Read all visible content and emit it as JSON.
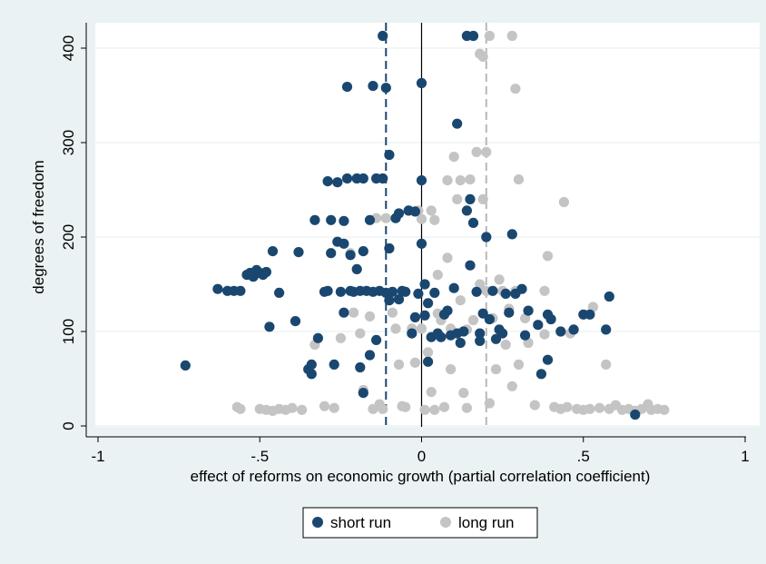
{
  "chart_data": {
    "type": "scatter",
    "title": "",
    "xlabel": "effect of reforms on economic growth (partial correlation coefficient)",
    "ylabel": "degrees of freedom",
    "xlim": [
      -1,
      1
    ],
    "ylim": [
      0,
      420
    ],
    "x_ticks": [
      -1,
      -0.5,
      0,
      0.5,
      1
    ],
    "x_tick_labels": [
      "-1",
      "-.5",
      "0",
      ".5",
      "1"
    ],
    "y_ticks": [
      0,
      100,
      200,
      300,
      400
    ],
    "y_tick_labels": [
      "0",
      "100",
      "200",
      "300",
      "400"
    ],
    "grid": "horizontal",
    "legend_position": "bottom",
    "reference_lines": [
      {
        "x": 0,
        "style": "solid",
        "color": "#000000"
      },
      {
        "x": -0.11,
        "style": "dashed",
        "color": "#1a476f"
      },
      {
        "x": 0.2,
        "style": "dashed",
        "color": "#b8b8b8"
      }
    ],
    "series": [
      {
        "name": "short run",
        "color": "#1a476f",
        "points": [
          [
            -0.73,
            64
          ],
          [
            -0.63,
            145
          ],
          [
            -0.6,
            143
          ],
          [
            -0.58,
            143
          ],
          [
            -0.56,
            143
          ],
          [
            -0.54,
            160
          ],
          [
            -0.53,
            162
          ],
          [
            -0.52,
            158
          ],
          [
            -0.51,
            165
          ],
          [
            -0.5,
            162
          ],
          [
            -0.49,
            160
          ],
          [
            -0.48,
            163
          ],
          [
            -0.47,
            105
          ],
          [
            -0.46,
            185
          ],
          [
            -0.44,
            141
          ],
          [
            -0.39,
            111
          ],
          [
            -0.38,
            184
          ],
          [
            -0.35,
            60
          ],
          [
            -0.34,
            55
          ],
          [
            -0.34,
            65
          ],
          [
            -0.33,
            218
          ],
          [
            -0.32,
            93
          ],
          [
            -0.3,
            142
          ],
          [
            -0.29,
            259
          ],
          [
            -0.29,
            143
          ],
          [
            -0.28,
            183
          ],
          [
            -0.28,
            218
          ],
          [
            -0.27,
            65
          ],
          [
            -0.26,
            195
          ],
          [
            -0.26,
            258
          ],
          [
            -0.25,
            142
          ],
          [
            -0.24,
            217
          ],
          [
            -0.24,
            193
          ],
          [
            -0.24,
            120
          ],
          [
            -0.23,
            262
          ],
          [
            -0.23,
            359
          ],
          [
            -0.22,
            143
          ],
          [
            -0.22,
            181
          ],
          [
            -0.21,
            142
          ],
          [
            -0.2,
            166
          ],
          [
            -0.2,
            262
          ],
          [
            -0.19,
            62
          ],
          [
            -0.19,
            143
          ],
          [
            -0.18,
            35
          ],
          [
            -0.18,
            185
          ],
          [
            -0.18,
            262
          ],
          [
            -0.17,
            143
          ],
          [
            -0.16,
            75
          ],
          [
            -0.16,
            218
          ],
          [
            -0.15,
            360
          ],
          [
            -0.15,
            142
          ],
          [
            -0.14,
            262
          ],
          [
            -0.14,
            91
          ],
          [
            -0.13,
            143
          ],
          [
            -0.12,
            262
          ],
          [
            -0.12,
            413
          ],
          [
            -0.11,
            358
          ],
          [
            -0.11,
            141
          ],
          [
            -0.1,
            287
          ],
          [
            -0.1,
            133
          ],
          [
            -0.1,
            188
          ],
          [
            -0.09,
            142
          ],
          [
            -0.08,
            220
          ],
          [
            -0.07,
            134
          ],
          [
            -0.07,
            225
          ],
          [
            -0.06,
            143
          ],
          [
            -0.05,
            142
          ],
          [
            -0.04,
            228
          ],
          [
            -0.03,
            98
          ],
          [
            -0.02,
            115
          ],
          [
            -0.02,
            227
          ],
          [
            -0.01,
            140
          ],
          [
            0,
            363
          ],
          [
            0,
            260
          ],
          [
            0,
            193
          ],
          [
            0.01,
            150
          ],
          [
            0.01,
            117
          ],
          [
            0.02,
            130
          ],
          [
            0.02,
            68
          ],
          [
            0.03,
            94
          ],
          [
            0.04,
            141
          ],
          [
            0.05,
            98
          ],
          [
            0.06,
            94
          ],
          [
            0.07,
            118
          ],
          [
            0.08,
            122
          ],
          [
            0.09,
            96
          ],
          [
            0.1,
            146
          ],
          [
            0.11,
            320
          ],
          [
            0.11,
            98
          ],
          [
            0.12,
            88
          ],
          [
            0.13,
            100
          ],
          [
            0.14,
            413
          ],
          [
            0.14,
            228
          ],
          [
            0.15,
            240
          ],
          [
            0.15,
            170
          ],
          [
            0.16,
            413
          ],
          [
            0.16,
            215
          ],
          [
            0.17,
            142
          ],
          [
            0.18,
            90
          ],
          [
            0.18,
            98
          ],
          [
            0.19,
            119
          ],
          [
            0.2,
            200
          ],
          [
            0.21,
            113
          ],
          [
            0.22,
            143
          ],
          [
            0.23,
            92
          ],
          [
            0.24,
            102
          ],
          [
            0.25,
            98
          ],
          [
            0.26,
            140
          ],
          [
            0.27,
            120
          ],
          [
            0.28,
            203
          ],
          [
            0.29,
            140
          ],
          [
            0.31,
            145
          ],
          [
            0.32,
            96
          ],
          [
            0.33,
            122
          ],
          [
            0.36,
            107
          ],
          [
            0.37,
            55
          ],
          [
            0.39,
            70
          ],
          [
            0.39,
            118
          ],
          [
            0.4,
            113
          ],
          [
            0.43,
            100
          ],
          [
            0.47,
            102
          ],
          [
            0.5,
            118
          ],
          [
            0.52,
            118
          ],
          [
            0.57,
            102
          ],
          [
            0.58,
            137
          ],
          [
            0.66,
            12
          ]
        ]
      },
      {
        "name": "long run",
        "color": "#c4c4c4",
        "points": [
          [
            -0.57,
            20
          ],
          [
            -0.56,
            18
          ],
          [
            -0.5,
            18
          ],
          [
            -0.48,
            17
          ],
          [
            -0.46,
            16
          ],
          [
            -0.44,
            18
          ],
          [
            -0.42,
            17
          ],
          [
            -0.4,
            19
          ],
          [
            -0.37,
            17
          ],
          [
            -0.33,
            86
          ],
          [
            -0.3,
            21
          ],
          [
            -0.27,
            19
          ],
          [
            -0.25,
            93
          ],
          [
            -0.22,
            183
          ],
          [
            -0.21,
            120
          ],
          [
            -0.19,
            98
          ],
          [
            -0.18,
            38
          ],
          [
            -0.16,
            116
          ],
          [
            -0.15,
            18
          ],
          [
            -0.14,
            220
          ],
          [
            -0.13,
            23
          ],
          [
            -0.12,
            18
          ],
          [
            -0.11,
            220
          ],
          [
            -0.09,
            120
          ],
          [
            -0.08,
            103
          ],
          [
            -0.07,
            65
          ],
          [
            -0.06,
            21
          ],
          [
            -0.05,
            20
          ],
          [
            -0.04,
            228
          ],
          [
            -0.03,
            103
          ],
          [
            -0.02,
            67
          ],
          [
            -0.01,
            228
          ],
          [
            0,
            103
          ],
          [
            0,
            219
          ],
          [
            0.01,
            17
          ],
          [
            0.02,
            78
          ],
          [
            0.03,
            36
          ],
          [
            0.03,
            228
          ],
          [
            0.04,
            17
          ],
          [
            0.04,
            218
          ],
          [
            0.05,
            119
          ],
          [
            0.05,
            160
          ],
          [
            0.06,
            112
          ],
          [
            0.07,
            20
          ],
          [
            0.08,
            178
          ],
          [
            0.08,
            260
          ],
          [
            0.09,
            103
          ],
          [
            0.09,
            60
          ],
          [
            0.1,
            285
          ],
          [
            0.11,
            240
          ],
          [
            0.12,
            133
          ],
          [
            0.12,
            260
          ],
          [
            0.13,
            35
          ],
          [
            0.14,
            102
          ],
          [
            0.14,
            19
          ],
          [
            0.15,
            261
          ],
          [
            0.16,
            112
          ],
          [
            0.17,
            290
          ],
          [
            0.18,
            394
          ],
          [
            0.18,
            150
          ],
          [
            0.19,
            391
          ],
          [
            0.19,
            240
          ],
          [
            0.2,
            290
          ],
          [
            0.2,
            143
          ],
          [
            0.21,
            413
          ],
          [
            0.21,
            24
          ],
          [
            0.22,
            114
          ],
          [
            0.23,
            60
          ],
          [
            0.24,
            155
          ],
          [
            0.25,
            143
          ],
          [
            0.26,
            86
          ],
          [
            0.27,
            124
          ],
          [
            0.28,
            413
          ],
          [
            0.28,
            42
          ],
          [
            0.29,
            357
          ],
          [
            0.29,
            143
          ],
          [
            0.3,
            261
          ],
          [
            0.3,
            65
          ],
          [
            0.32,
            114
          ],
          [
            0.33,
            88
          ],
          [
            0.35,
            22
          ],
          [
            0.38,
            97
          ],
          [
            0.38,
            143
          ],
          [
            0.39,
            180
          ],
          [
            0.41,
            20
          ],
          [
            0.43,
            18
          ],
          [
            0.44,
            237
          ],
          [
            0.45,
            20
          ],
          [
            0.46,
            98
          ],
          [
            0.48,
            18
          ],
          [
            0.5,
            17
          ],
          [
            0.52,
            18
          ],
          [
            0.53,
            126
          ],
          [
            0.55,
            19
          ],
          [
            0.57,
            65
          ],
          [
            0.58,
            18
          ],
          [
            0.6,
            22
          ],
          [
            0.62,
            17
          ],
          [
            0.64,
            18
          ],
          [
            0.66,
            16
          ],
          [
            0.68,
            18
          ],
          [
            0.7,
            23
          ],
          [
            0.71,
            17
          ],
          [
            0.73,
            18
          ],
          [
            0.75,
            17
          ]
        ]
      }
    ]
  }
}
